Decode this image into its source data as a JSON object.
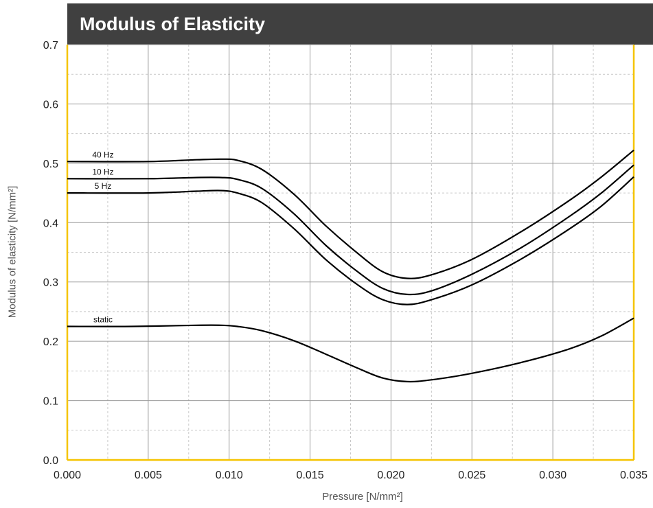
{
  "chart_data": {
    "type": "line",
    "title": "Modulus of Elasticity",
    "xlabel": "Pressure [N/mm²]",
    "ylabel": "Modulus of elasticity [N/mm²]",
    "xlim": [
      0.0,
      0.035
    ],
    "ylim": [
      0.0,
      0.7
    ],
    "x_ticks": [
      "0.000",
      "0.005",
      "0.010",
      "0.015",
      "0.020",
      "0.025",
      "0.030",
      "0.035"
    ],
    "y_ticks": [
      "0.0",
      "0.1",
      "0.2",
      "0.3",
      "0.4",
      "0.5",
      "0.6",
      "0.7"
    ],
    "grid": true,
    "x_minor_grid": true,
    "y_minor_grid": true,
    "colors": {
      "frame": "#f5c400",
      "title_bg": "#404040",
      "title_text": "#ffffff",
      "line": "#000000",
      "grid_major": "#9a9a9a",
      "grid_minor": "#c8c8c8",
      "axis_label": "#555555"
    },
    "series": [
      {
        "name": "40 Hz",
        "x": [
          0.0,
          0.005,
          0.008,
          0.0095,
          0.0105,
          0.012,
          0.014,
          0.016,
          0.018,
          0.0195,
          0.021,
          0.0225,
          0.025,
          0.028,
          0.031,
          0.033,
          0.035
        ],
        "y": [
          0.503,
          0.503,
          0.506,
          0.507,
          0.505,
          0.49,
          0.448,
          0.394,
          0.347,
          0.317,
          0.306,
          0.312,
          0.338,
          0.384,
          0.437,
          0.477,
          0.522
        ]
      },
      {
        "name": "10 Hz",
        "x": [
          0.0,
          0.005,
          0.008,
          0.0095,
          0.0105,
          0.012,
          0.014,
          0.016,
          0.018,
          0.0195,
          0.021,
          0.0225,
          0.025,
          0.028,
          0.031,
          0.033,
          0.035
        ],
        "y": [
          0.474,
          0.474,
          0.476,
          0.476,
          0.473,
          0.458,
          0.415,
          0.361,
          0.316,
          0.289,
          0.279,
          0.285,
          0.313,
          0.357,
          0.41,
          0.45,
          0.497
        ]
      },
      {
        "name": "5 Hz",
        "x": [
          0.0,
          0.005,
          0.008,
          0.0095,
          0.0105,
          0.012,
          0.014,
          0.016,
          0.018,
          0.0195,
          0.021,
          0.0225,
          0.025,
          0.028,
          0.031,
          0.033,
          0.035
        ],
        "y": [
          0.45,
          0.45,
          0.453,
          0.454,
          0.45,
          0.434,
          0.39,
          0.337,
          0.294,
          0.27,
          0.262,
          0.27,
          0.295,
          0.338,
          0.389,
          0.428,
          0.477
        ]
      },
      {
        "name": "static",
        "x": [
          0.0,
          0.004,
          0.008,
          0.0095,
          0.0105,
          0.012,
          0.014,
          0.016,
          0.018,
          0.0195,
          0.021,
          0.0225,
          0.025,
          0.028,
          0.031,
          0.033,
          0.035
        ],
        "y": [
          0.225,
          0.225,
          0.227,
          0.227,
          0.225,
          0.218,
          0.201,
          0.178,
          0.154,
          0.138,
          0.132,
          0.135,
          0.146,
          0.164,
          0.187,
          0.209,
          0.239
        ]
      }
    ]
  }
}
